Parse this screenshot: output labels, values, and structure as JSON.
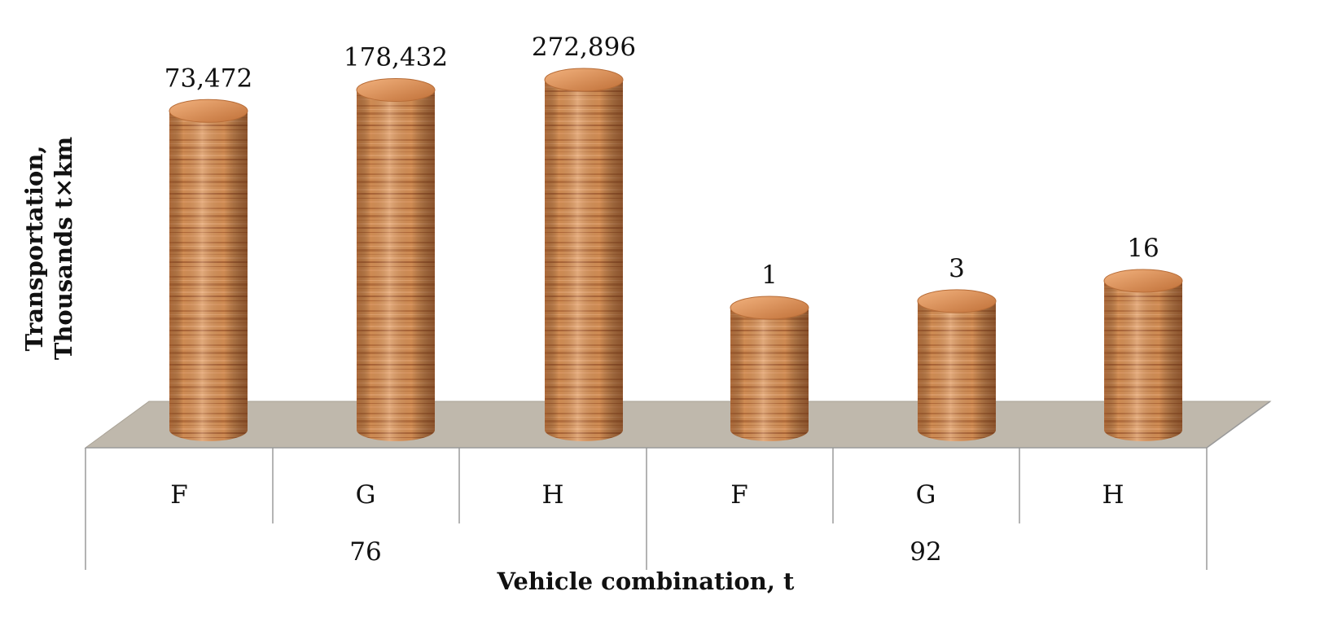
{
  "chart_data": {
    "type": "bar",
    "style": "3d-cylinder",
    "bar_fill": "wood-grain",
    "colors": {
      "bar_base": "#d58c52",
      "bar_light": "#efb27f",
      "bar_dark": "#9a5128",
      "floor": "#bfb8ac",
      "axis_line": "#9a9a9a"
    },
    "y_axis": {
      "title_lines": [
        "Transportation,",
        "Thousands t×km"
      ],
      "tick_labels_shown": false,
      "scale": "non-proportional"
    },
    "x_axis": {
      "title": "Vehicle combination, t"
    },
    "groups": [
      {
        "name": "76",
        "categories": [
          "F",
          "G",
          "H"
        ]
      },
      {
        "name": "92",
        "categories": [
          "F",
          "G",
          "H"
        ]
      }
    ],
    "bars": [
      {
        "group": "76",
        "category": "F",
        "value": 73472,
        "value_label": "73,472"
      },
      {
        "group": "76",
        "category": "G",
        "value": 178432,
        "value_label": "178,432"
      },
      {
        "group": "76",
        "category": "H",
        "value": 272896,
        "value_label": "272,896"
      },
      {
        "group": "92",
        "category": "F",
        "value": 1,
        "value_label": "1"
      },
      {
        "group": "92",
        "category": "G",
        "value": 3,
        "value_label": "3"
      },
      {
        "group": "92",
        "category": "H",
        "value": 16,
        "value_label": "16"
      }
    ]
  }
}
